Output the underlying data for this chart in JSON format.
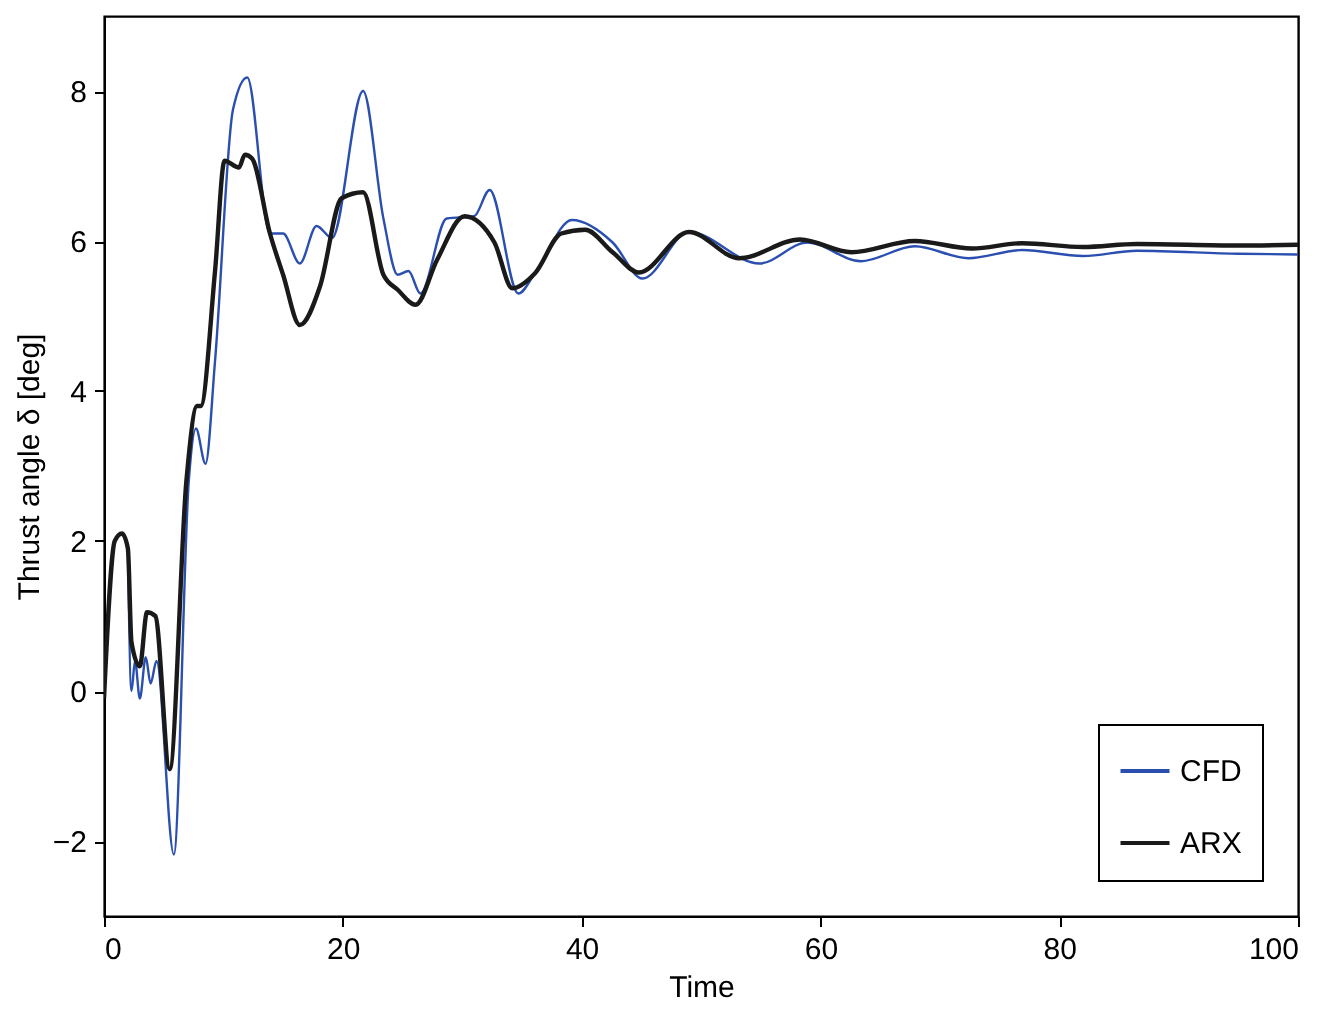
{
  "chart_data": {
    "type": "line",
    "xlabel": "Time",
    "ylabel": "Thrust angle δ [deg]",
    "xlim": [
      0,
      100
    ],
    "ylim": [
      -3,
      9
    ],
    "xticks": [
      0,
      20,
      40,
      60,
      80,
      100
    ],
    "yticks": [
      -2,
      0,
      2,
      4,
      6,
      8
    ],
    "grid": false,
    "legend": "bottom right",
    "marker": "none",
    "line_style": "solid",
    "series": [
      {
        "name": "CFD",
        "color": "#2b4fb0",
        "x": [
          2.0,
          2.3,
          2.6,
          3.0,
          3.5,
          3.9,
          4.4,
          5.85,
          7.1,
          7.7,
          8.5,
          9.3,
          10.8,
          12.0,
          13.9,
          15.0,
          16.4,
          17.8,
          19.1,
          21.7,
          23.4,
          24.6,
          25.5,
          26.5,
          28.7,
          31.0,
          32.3,
          34.7,
          36.1,
          39.2,
          42.6,
          45.1,
          49.0,
          54.9,
          58.9,
          63.4,
          67.9,
          72.4,
          76.9,
          82,
          86.5,
          95,
          100
        ],
        "values": [
          1.9,
          0.0,
          0.4,
          -0.1,
          0.45,
          0.1,
          0.4,
          -2.18,
          2.8,
          3.5,
          3.03,
          4.4,
          7.75,
          8.18,
          6.1,
          6.1,
          5.7,
          6.2,
          6.04,
          8.0,
          6.3,
          5.55,
          5.6,
          5.3,
          6.3,
          6.33,
          6.68,
          5.3,
          5.57,
          6.28,
          5.98,
          5.5,
          6.12,
          5.7,
          5.98,
          5.73,
          5.93,
          5.77,
          5.88,
          5.8,
          5.87,
          5.83,
          5.82
        ]
      },
      {
        "name": "ARX",
        "color": "#1a1a1a",
        "x": [
          0,
          0.9,
          1.5,
          2.0,
          2.3,
          3.0,
          3.6,
          4.3,
          5.5,
          6.9,
          7.8,
          8.1,
          9.3,
          10.1,
          11.3,
          11.8,
          12.4,
          13.9,
          15.0,
          16.4,
          18.1,
          19.9,
          21.7,
          23.4,
          24.6,
          26.1,
          27.9,
          30.2,
          32.7,
          34.2,
          36.1,
          38.3,
          40.3,
          42.6,
          44.8,
          49.0,
          53.2,
          58.3,
          62.6,
          67.9,
          72.7,
          76.9,
          82,
          86.5,
          95,
          100
        ],
        "values": [
          -0.1,
          2.0,
          2.1,
          1.9,
          0.65,
          0.33,
          1.05,
          1.0,
          -1.04,
          2.8,
          3.8,
          3.8,
          5.6,
          7.07,
          6.98,
          7.15,
          7.1,
          6.1,
          5.55,
          4.88,
          5.4,
          6.57,
          6.65,
          5.55,
          5.35,
          5.15,
          5.75,
          6.33,
          5.98,
          5.37,
          5.57,
          6.1,
          6.15,
          5.85,
          5.58,
          6.12,
          5.77,
          6.02,
          5.85,
          6.0,
          5.9,
          5.97,
          5.92,
          5.96,
          5.94,
          5.95
        ]
      }
    ]
  }
}
